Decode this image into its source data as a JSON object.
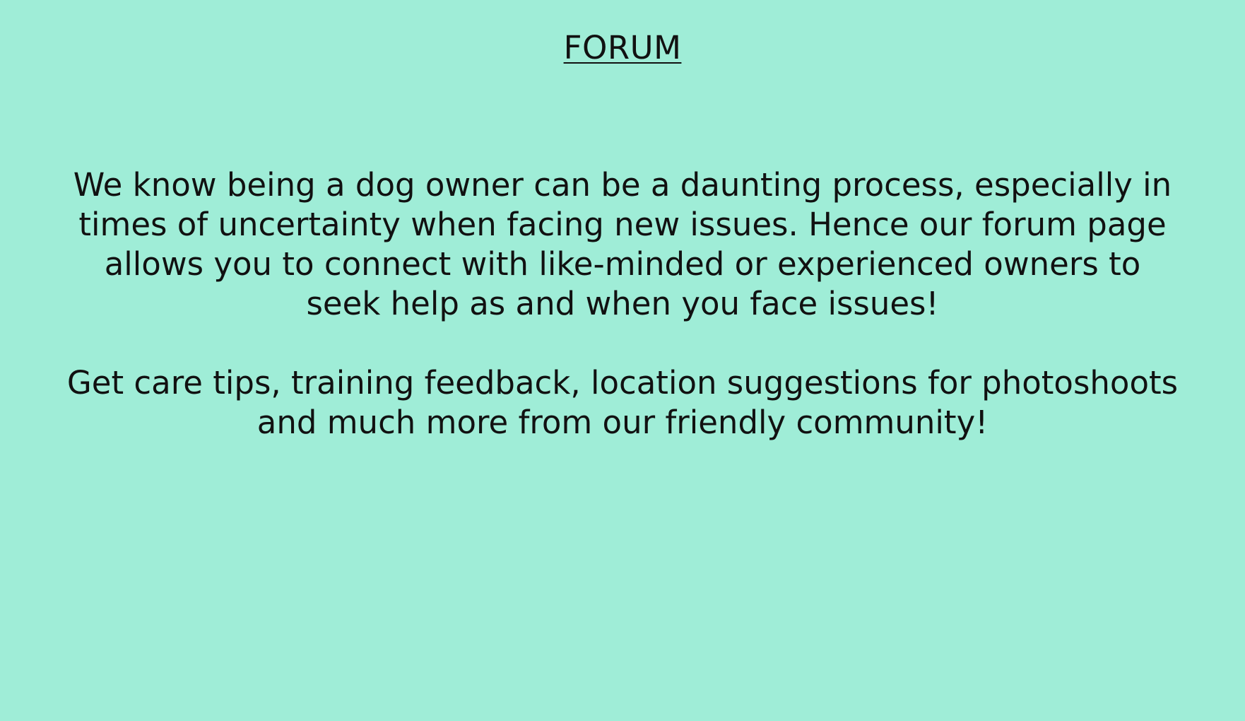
{
  "page": {
    "title": "FORUM",
    "paragraphs": [
      "We know being a dog owner can be a daunting process, especially in times of uncertainty when facing new issues. Hence our forum page allows you to connect with like-minded or experienced owners to seek help as and when you face issues!",
      "Get care tips, training feedback, location suggestions for photoshoots and much more from our friendly community!"
    ]
  },
  "colors": {
    "background": "#9fedd7",
    "text": "#111111"
  }
}
